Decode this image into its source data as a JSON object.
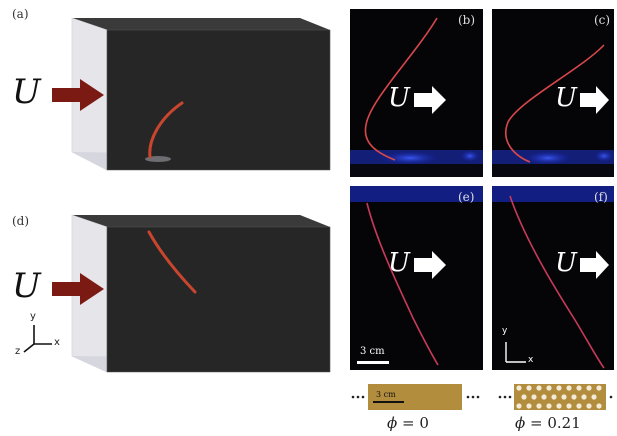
{
  "panels": {
    "a": "(a)",
    "b": "(b)",
    "c": "(c)",
    "d": "(d)",
    "e": "(e)",
    "f": "(f)"
  },
  "flow_symbol": "U",
  "axes": {
    "x": "x",
    "y": "y",
    "z": "z"
  },
  "scale_bars": {
    "photo": "3 cm",
    "strip": "3 cm"
  },
  "porosity": {
    "solid": "0",
    "perforated": "0.21",
    "symbol": "ϕ"
  },
  "colors": {
    "tank_dark": "#262626",
    "fiber_red": "#c8452e",
    "photo_bg": "#050508",
    "arrow_dark": "#7a1a12",
    "strip_brass": "#b38d3e"
  }
}
